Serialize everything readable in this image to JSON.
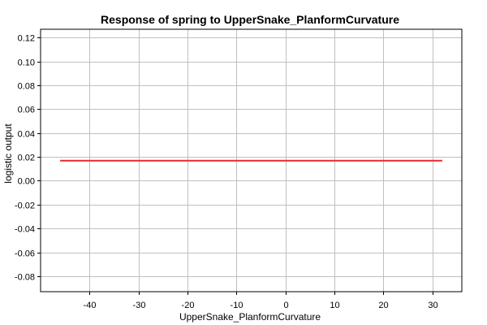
{
  "chart_data": {
    "type": "line",
    "title": "Response of spring to UpperSnake_PlanformCurvature",
    "xlabel": "UpperSnake_PlanformCurvature",
    "ylabel": "logistic output",
    "xlim": [
      -50,
      36
    ],
    "ylim": [
      -0.093,
      0.127
    ],
    "xticks": [
      -40,
      -30,
      -20,
      -10,
      0,
      10,
      20,
      30
    ],
    "xtick_labels": [
      "-40",
      "-30",
      "-20",
      "-10",
      "0",
      "10",
      "20",
      "30"
    ],
    "yticks": [
      -0.08,
      -0.06,
      -0.04,
      -0.02,
      0.0,
      0.02,
      0.04,
      0.06,
      0.08,
      0.1,
      0.12
    ],
    "ytick_labels": [
      "-0.08",
      "-0.06",
      "-0.04",
      "-0.02",
      "0.00",
      "0.02",
      "0.04",
      "0.06",
      "0.08",
      "0.10",
      "0.12"
    ],
    "grid": true,
    "series": [
      {
        "color": "#e8282b",
        "x": [
          -46,
          32
        ],
        "y": [
          0.0168,
          0.0168
        ]
      }
    ]
  }
}
